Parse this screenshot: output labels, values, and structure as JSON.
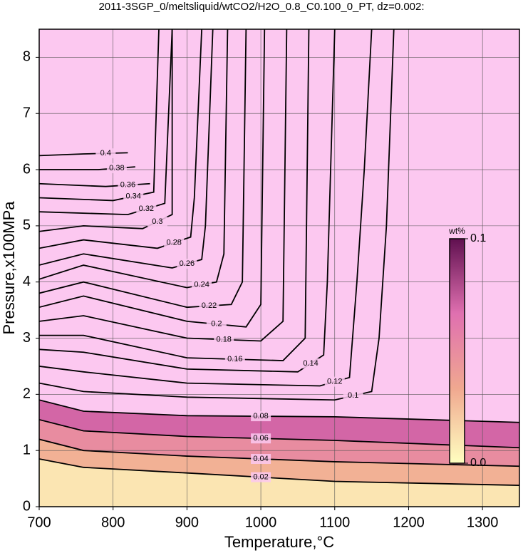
{
  "chart_data": {
    "type": "contour",
    "title": "2011-3SGP_0/meltsliquid/wtCO2/H2O_0.8_C0.100_0_PT, dz=0.002:",
    "x_label": "Temperature,°C",
    "y_label": "Pressure,x100MPa",
    "xlim": [
      700,
      1350
    ],
    "ylim": [
      0,
      8.5
    ],
    "xticks": [
      700,
      800,
      900,
      1000,
      1100,
      1200,
      1300
    ],
    "yticks": [
      0,
      1,
      2,
      3,
      4,
      5,
      6,
      7,
      8
    ],
    "grid": true,
    "background_color": "#fcc8f0",
    "colormap": [
      "#ffffc0",
      "#f0a890",
      "#e070b0",
      "#601050"
    ],
    "colorbar": {
      "label": "wt%",
      "lim": [
        0,
        0.1
      ],
      "ticks": [
        {
          "value": 0,
          "label": "0.0"
        },
        0.1
      ]
    },
    "contours": [
      {
        "level": 0.02,
        "x": [
          700,
          760,
          900,
          1100,
          1350
        ],
        "y": [
          0.85,
          0.7,
          0.6,
          0.45,
          0.38
        ]
      },
      {
        "level": 0.04,
        "x": [
          700,
          760,
          900,
          1100,
          1350
        ],
        "y": [
          1.2,
          1.0,
          0.9,
          0.8,
          0.72
        ]
      },
      {
        "level": 0.06,
        "x": [
          700,
          760,
          900,
          1100,
          1350
        ],
        "y": [
          1.55,
          1.35,
          1.25,
          1.18,
          1.05
        ]
      },
      {
        "level": 0.08,
        "x": [
          700,
          760,
          900,
          1100,
          1350
        ],
        "y": [
          1.9,
          1.7,
          1.62,
          1.6,
          1.5
        ]
      },
      {
        "level": 0.1,
        "x": [
          700,
          760,
          900,
          1100,
          1150,
          1160,
          1170,
          1180
        ],
        "y": [
          2.2,
          2.05,
          1.95,
          1.9,
          2.05,
          3,
          5,
          8.5
        ]
      },
      {
        "level": 0.12,
        "x": [
          700,
          760,
          900,
          1080,
          1120,
          1130,
          1140,
          1150
        ],
        "y": [
          2.5,
          2.4,
          2.2,
          2.15,
          2.3,
          4,
          6,
          8.5
        ]
      },
      {
        "level": 0.14,
        "x": [
          700,
          760,
          900,
          1050,
          1085,
          1090,
          1100
        ],
        "y": [
          2.8,
          2.75,
          2.45,
          2.4,
          2.7,
          4,
          8.5
        ]
      },
      {
        "level": 0.16,
        "x": [
          700,
          760,
          900,
          1030,
          1060,
          1065
        ],
        "y": [
          3.05,
          3.05,
          2.65,
          2.6,
          3,
          8.5
        ]
      },
      {
        "level": 0.18,
        "x": [
          700,
          760,
          900,
          1000,
          1030,
          1035
        ],
        "y": [
          3.3,
          3.4,
          3.0,
          2.95,
          3.3,
          8.5
        ]
      },
      {
        "level": 0.2,
        "x": [
          700,
          760,
          900,
          980,
          1000,
          1005
        ],
        "y": [
          3.55,
          3.75,
          3.3,
          3.2,
          3.6,
          8.5
        ]
      },
      {
        "level": 0.22,
        "x": [
          700,
          760,
          900,
          960,
          975,
          980
        ],
        "y": [
          3.8,
          4.0,
          3.55,
          3.6,
          4,
          8.5
        ]
      },
      {
        "level": 0.24,
        "x": [
          700,
          760,
          900,
          940,
          950,
          955
        ],
        "y": [
          4.05,
          4.3,
          3.9,
          4.0,
          4.5,
          8.5
        ]
      },
      {
        "level": 0.26,
        "x": [
          700,
          760,
          880,
          920,
          925,
          935
        ],
        "y": [
          4.3,
          4.5,
          4.25,
          4.4,
          5,
          8.5
        ]
      },
      {
        "level": 0.28,
        "x": [
          700,
          760,
          860,
          905,
          910,
          920
        ],
        "y": [
          4.6,
          4.75,
          4.6,
          4.8,
          5.5,
          8.5
        ]
      },
      {
        "level": 0.3,
        "x": [
          700,
          760,
          840,
          880,
          880
        ],
        "y": [
          4.9,
          5.0,
          4.95,
          5.2,
          8.5
        ]
      },
      {
        "level": 0.32,
        "x": [
          700,
          820,
          870,
          880
        ],
        "y": [
          5.25,
          5.2,
          5.4,
          8.5
        ]
      },
      {
        "level": 0.34,
        "x": [
          700,
          800,
          855,
          862
        ],
        "y": [
          5.5,
          5.45,
          5.6,
          8.5
        ]
      },
      {
        "level": 0.36,
        "x": [
          700,
          790,
          850
        ],
        "y": [
          5.75,
          5.7,
          5.75
        ]
      },
      {
        "level": 0.38,
        "x": [
          700,
          780,
          830
        ],
        "y": [
          6.0,
          6.0,
          6.05
        ]
      },
      {
        "level": 0.4,
        "x": [
          700,
          760,
          820
        ],
        "y": [
          6.25,
          6.28,
          6.3
        ]
      }
    ]
  }
}
